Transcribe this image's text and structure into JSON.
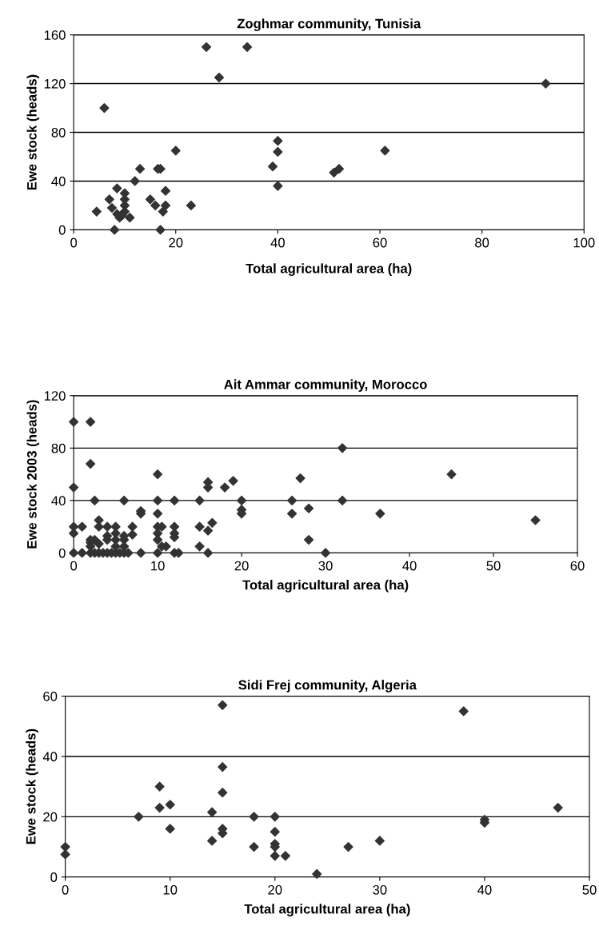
{
  "chart_data": [
    {
      "type": "scatter",
      "title": "Zoghmar community, Tunisia",
      "xlabel": "Total agricultural area (ha)",
      "ylabel": "Ewe stock (heads)",
      "xlim": [
        0,
        100
      ],
      "xticks": [
        0,
        20,
        40,
        60,
        80,
        100
      ],
      "ylim": [
        0,
        160
      ],
      "yticks": [
        0,
        40,
        80,
        120,
        160
      ],
      "grid": "y",
      "marker": "diamond",
      "series": [
        {
          "color": "#333333",
          "x": [
            4.5,
            6,
            7,
            7.5,
            8,
            8.5,
            8.5,
            9,
            9.5,
            10,
            10,
            10,
            10,
            11,
            12,
            13,
            15,
            16,
            16.5,
            17,
            17,
            17.5,
            18,
            18,
            20,
            23,
            26,
            28.5,
            34,
            39,
            40,
            40,
            40,
            51,
            52,
            61,
            92.5
          ],
          "values": [
            15,
            100,
            25,
            18,
            0,
            34,
            13,
            10,
            12,
            30,
            25,
            20,
            15,
            10,
            40,
            50,
            25,
            20,
            50,
            50,
            0,
            15,
            20,
            32,
            65,
            20,
            150,
            125,
            150,
            52,
            73,
            64,
            36,
            47,
            50,
            65,
            120
          ]
        }
      ]
    },
    {
      "type": "scatter",
      "title": "Ait Ammar community, Morocco",
      "xlabel": "Total agricultural area (ha)",
      "ylabel": "Ewe stock 2003 (heads)",
      "xlim": [
        0,
        60
      ],
      "xticks": [
        0,
        10,
        20,
        30,
        40,
        50,
        60
      ],
      "ylim": [
        0,
        120
      ],
      "yticks": [
        0,
        40,
        80,
        120
      ],
      "grid": "y",
      "marker": "diamond",
      "series": [
        {
          "color": "#333333",
          "x": [
            0,
            0,
            0,
            0,
            0,
            1,
            1,
            2,
            2,
            2,
            2,
            2,
            2,
            2.5,
            2.5,
            2.5,
            3,
            3,
            3,
            3,
            3.5,
            4,
            4,
            4,
            4,
            4.5,
            5,
            5,
            5,
            5,
            5,
            5.5,
            6,
            6,
            6,
            6,
            6,
            6.5,
            7,
            7,
            8,
            8,
            8,
            10,
            10,
            10,
            10,
            10,
            10,
            10,
            10.5,
            10.5,
            11,
            12,
            12,
            12,
            12,
            12,
            12.5,
            15,
            15,
            15,
            16,
            16,
            16,
            16,
            16.5,
            18,
            19,
            20,
            20,
            20,
            26,
            26,
            27,
            28,
            28,
            30,
            32,
            32,
            36.5,
            45,
            55
          ],
          "values": [
            100,
            50,
            20,
            15,
            0,
            20,
            0,
            100,
            68,
            10,
            8,
            5,
            0,
            40,
            10,
            0,
            25,
            20,
            7,
            0,
            0,
            20,
            13,
            10,
            0,
            0,
            20,
            15,
            10,
            5,
            0,
            0,
            40,
            13,
            10,
            5,
            0,
            0,
            20,
            14,
            32,
            30,
            0,
            60,
            40,
            30,
            20,
            15,
            10,
            0,
            20,
            5,
            5,
            40,
            20,
            15,
            12,
            0,
            0,
            40,
            20,
            5,
            54,
            50,
            17,
            0,
            23,
            50,
            55,
            40,
            33,
            30,
            40,
            30,
            57,
            34,
            10,
            0,
            80,
            40,
            30,
            60,
            25
          ]
        }
      ]
    },
    {
      "type": "scatter",
      "title": "Sidi Frej community, Algeria",
      "xlabel": "Total agricultural area (ha)",
      "ylabel": "Ewe stock (heads)",
      "xlim": [
        0,
        50
      ],
      "xticks": [
        0,
        10,
        20,
        30,
        40,
        50
      ],
      "ylim": [
        0,
        60
      ],
      "yticks": [
        0,
        20,
        40,
        60
      ],
      "grid": "y",
      "marker": "diamond",
      "series": [
        {
          "color": "#333333",
          "x": [
            0,
            0,
            7,
            9,
            9,
            10,
            10,
            14,
            14,
            15,
            15,
            15,
            15,
            15,
            18,
            18,
            20,
            20,
            20,
            20,
            20,
            21,
            24,
            27,
            30,
            38,
            40,
            40,
            47
          ],
          "values": [
            10,
            7.5,
            20,
            30,
            23,
            24,
            16,
            21.5,
            12,
            57,
            36.5,
            28,
            16,
            14.5,
            20,
            10,
            20,
            15,
            11,
            10,
            7,
            7,
            1,
            10,
            12,
            55,
            19,
            18,
            23
          ]
        }
      ]
    }
  ]
}
